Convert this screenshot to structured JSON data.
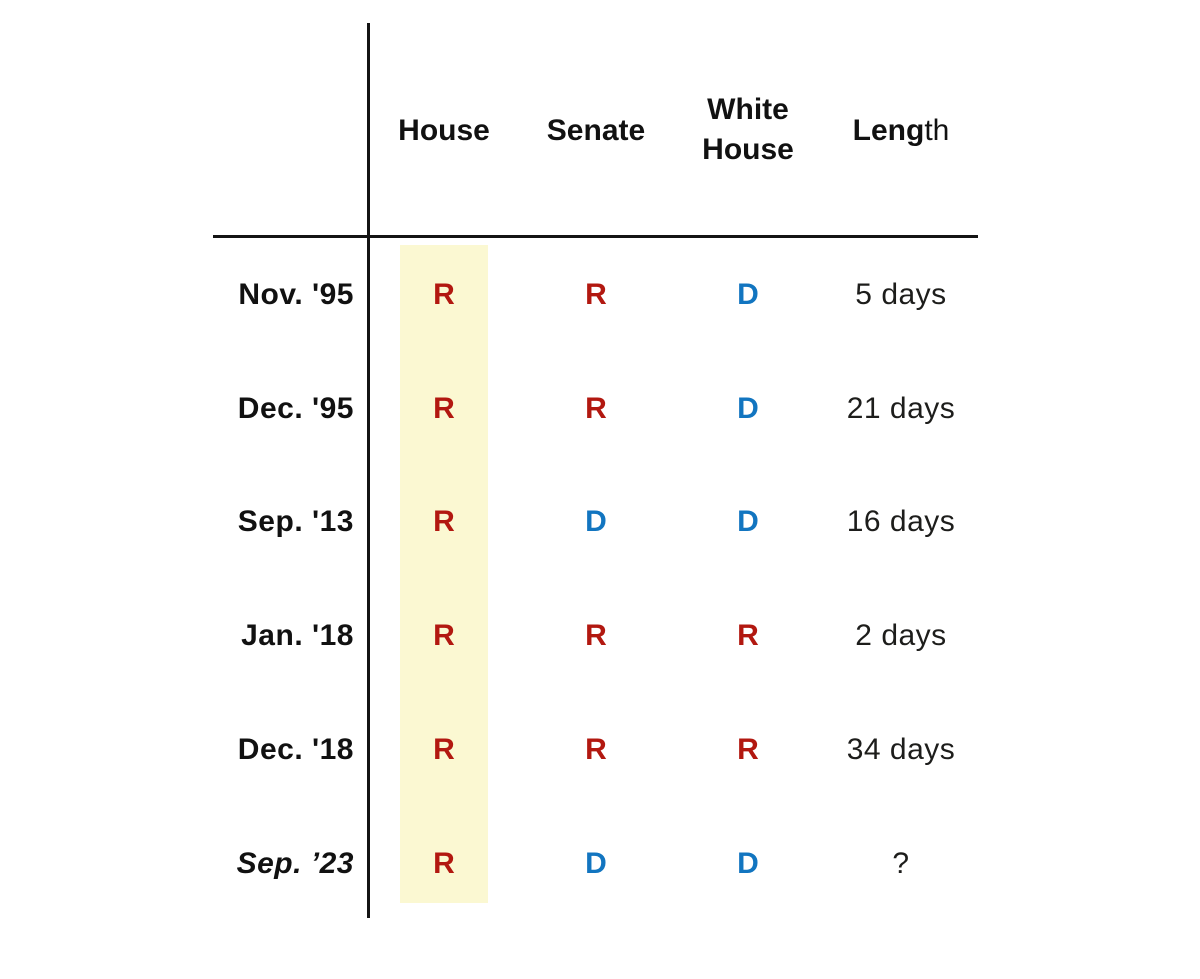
{
  "header": {
    "house": "House",
    "senate": "Senate",
    "white_house_lines": [
      "White",
      "House"
    ],
    "length_parts": [
      "Leng",
      "th"
    ]
  },
  "chart_data": {
    "type": "table",
    "title": "",
    "columns": [
      "",
      "House",
      "Senate",
      "White House",
      "Length"
    ],
    "rows": [
      [
        "Nov. '95",
        "R",
        "R",
        "D",
        "5 days"
      ],
      [
        "Dec. '95",
        "R",
        "R",
        "D",
        "21 days"
      ],
      [
        "Sep. '13",
        "R",
        "D",
        "D",
        "16 days"
      ],
      [
        "Jan. '18",
        "R",
        "R",
        "R",
        "2 days"
      ],
      [
        "Dec. '18",
        "R",
        "R",
        "R",
        "34 days"
      ],
      [
        "Sep. ’23",
        "R",
        "D",
        "D",
        "?"
      ]
    ],
    "layout_hints": {
      "highlighted_column": "House",
      "last_row_style": "italic",
      "grid": "single vertical rule left of data columns, single horizontal rule under header"
    }
  },
  "colors": {
    "republican": "#B21810",
    "democrat": "#1275C0",
    "house_highlight": "#FBF8D2",
    "rule": "#141414",
    "text": "#111111"
  }
}
